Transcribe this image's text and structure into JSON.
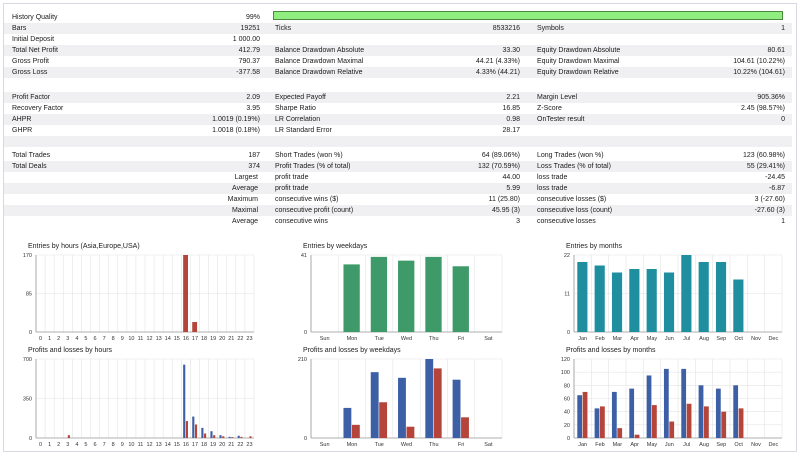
{
  "stats_rows": [
    {
      "cells": [
        [
          "History Quality",
          "99%"
        ],
        [
          "",
          ""
        ],
        [
          "",
          ""
        ]
      ],
      "alt": false
    },
    {
      "cells": [
        [
          "Bars",
          "19251"
        ],
        [
          "Ticks",
          "8533216"
        ],
        [
          "Symbols",
          "1"
        ]
      ],
      "alt": true
    },
    {
      "cells": [
        [
          "Initial Deposit",
          "1 000.00"
        ],
        [
          "",
          ""
        ],
        [
          "",
          ""
        ]
      ],
      "alt": false
    },
    {
      "cells": [
        [
          "Total Net Profit",
          "412.79"
        ],
        [
          "Balance Drawdown Absolute",
          "33.30"
        ],
        [
          "Equity Drawdown Absolute",
          "80.61"
        ]
      ],
      "alt": true
    },
    {
      "cells": [
        [
          "Gross Profit",
          "790.37"
        ],
        [
          "Balance Drawdown Maximal",
          "44.21 (4.33%)"
        ],
        [
          "Equity Drawdown Maximal",
          "104.61 (10.22%)"
        ]
      ],
      "alt": false
    },
    {
      "cells": [
        [
          "Gross Loss",
          "-377.58"
        ],
        [
          "Balance Drawdown Relative",
          "4.33% (44.21)"
        ],
        [
          "Equity Drawdown Relative",
          "10.22% (104.61)"
        ]
      ],
      "alt": true
    },
    {
      "cells": [
        [
          "",
          ""
        ],
        [
          "",
          ""
        ],
        [
          "",
          ""
        ]
      ],
      "alt": false
    },
    {
      "cells": [
        [
          "Profit Factor",
          "2.09"
        ],
        [
          "Expected Payoff",
          "2.21"
        ],
        [
          "Margin Level",
          "905.36%"
        ]
      ],
      "alt": true
    },
    {
      "cells": [
        [
          "Recovery Factor",
          "3.95"
        ],
        [
          "Sharpe Ratio",
          "16.85"
        ],
        [
          "Z-Score",
          "2.45 (98.57%)"
        ]
      ],
      "alt": false
    },
    {
      "cells": [
        [
          "AHPR",
          "1.0019 (0.19%)"
        ],
        [
          "LR Correlation",
          "0.98"
        ],
        [
          "OnTester result",
          "0"
        ]
      ],
      "alt": true
    },
    {
      "cells": [
        [
          "GHPR",
          "1.0018 (0.18%)"
        ],
        [
          "LR Standard Error",
          "28.17"
        ],
        [
          "",
          ""
        ]
      ],
      "alt": false
    },
    {
      "cells": [
        [
          "",
          ""
        ],
        [
          "",
          ""
        ],
        [
          "",
          ""
        ]
      ],
      "alt": true
    },
    {
      "cells": [
        [
          "Total Trades",
          "187"
        ],
        [
          "Short Trades (won %)",
          "64 (89.06%)"
        ],
        [
          "Long Trades (won %)",
          "123 (60.98%)"
        ]
      ],
      "alt": false
    },
    {
      "cells": [
        [
          "Total Deals",
          "374"
        ],
        [
          "Profit Trades (% of total)",
          "132 (70.59%)"
        ],
        [
          "Loss Trades (% of total)",
          "55 (29.41%)"
        ]
      ],
      "alt": true
    },
    {
      "cells": [
        [
          "Largest",
          ""
        ],
        [
          "profit trade",
          "44.00"
        ],
        [
          "loss trade",
          "-24.45"
        ]
      ],
      "alt": false,
      "right_label": true
    },
    {
      "cells": [
        [
          "Average",
          ""
        ],
        [
          "profit trade",
          "5.99"
        ],
        [
          "loss trade",
          "-6.87"
        ]
      ],
      "alt": true,
      "right_label": true
    },
    {
      "cells": [
        [
          "Maximum",
          ""
        ],
        [
          "consecutive wins ($)",
          "11 (25.80)"
        ],
        [
          "consecutive losses ($)",
          "3 (-27.60)"
        ]
      ],
      "alt": false,
      "right_label": true
    },
    {
      "cells": [
        [
          "Maximal",
          ""
        ],
        [
          "consecutive profit (count)",
          "45.95 (3)"
        ],
        [
          "consecutive loss (count)",
          "-27.60 (3)"
        ]
      ],
      "alt": true,
      "right_label": true
    },
    {
      "cells": [
        [
          "Average",
          ""
        ],
        [
          "consecutive wins",
          "3"
        ],
        [
          "consecutive losses",
          "1"
        ]
      ],
      "alt": false,
      "right_label": true
    }
  ],
  "colors": {
    "quality_fill": "#90ee80",
    "red": "#b5443a",
    "blue": "#3d5fa6",
    "green": "#3f9a6a",
    "teal": "#1f8fa0"
  },
  "chart_data": [
    {
      "id": "entries-hours",
      "type": "bar",
      "title": "Entries by hours (Asia,Europe,USA)",
      "categories": [
        "0",
        "1",
        "2",
        "3",
        "4",
        "5",
        "6",
        "7",
        "8",
        "9",
        "10",
        "11",
        "12",
        "13",
        "14",
        "15",
        "16",
        "17",
        "18",
        "19",
        "20",
        "21",
        "22",
        "23"
      ],
      "ylim": [
        0,
        170
      ],
      "yticks": [
        "170",
        "85",
        "0"
      ],
      "series": [
        {
          "values": [
            0,
            0,
            0,
            0,
            0,
            0,
            0,
            0,
            0,
            0,
            0,
            0,
            0,
            0,
            0,
            0,
            170,
            22,
            0,
            0,
            0,
            0,
            0,
            0
          ],
          "color": "#b5443a"
        }
      ]
    },
    {
      "id": "entries-weekdays",
      "type": "bar",
      "title": "Entries by weekdays",
      "categories": [
        "Sun",
        "Mon",
        "Tue",
        "Wed",
        "Thu",
        "Fri",
        "Sat"
      ],
      "ylim": [
        0,
        41
      ],
      "yticks": [
        "41",
        "0"
      ],
      "series": [
        {
          "values": [
            0,
            36,
            40,
            38,
            40,
            35,
            0
          ],
          "color": "#3f9a6a"
        }
      ]
    },
    {
      "id": "entries-months",
      "type": "bar",
      "title": "Entries by months",
      "categories": [
        "Jan",
        "Feb",
        "Mar",
        "Apr",
        "May",
        "Jun",
        "Jul",
        "Aug",
        "Sep",
        "Oct",
        "Nov",
        "Dec"
      ],
      "ylim": [
        0,
        22
      ],
      "yticks": [
        "22",
        "11",
        "0"
      ],
      "series": [
        {
          "values": [
            20,
            19,
            17,
            18,
            18,
            17,
            22,
            20,
            20,
            15,
            0,
            0
          ],
          "color": "#1f8fa0"
        }
      ]
    },
    {
      "id": "pl-hours",
      "type": "bar",
      "title": "Profits and losses by hours",
      "categories": [
        "0",
        "1",
        "2",
        "3",
        "4",
        "5",
        "6",
        "7",
        "8",
        "9",
        "10",
        "11",
        "12",
        "13",
        "14",
        "15",
        "16",
        "17",
        "18",
        "19",
        "20",
        "21",
        "22",
        "23"
      ],
      "ylim": [
        0,
        700
      ],
      "yticks": [
        "700",
        "350",
        "0"
      ],
      "series": [
        {
          "values": [
            0,
            0,
            0,
            0,
            0,
            0,
            0,
            0,
            0,
            0,
            0,
            0,
            0,
            0,
            0,
            0,
            650,
            190,
            90,
            60,
            25,
            10,
            20,
            0
          ],
          "color": "#3d5fa6"
        },
        {
          "values": [
            0,
            0,
            0,
            25,
            0,
            0,
            0,
            0,
            0,
            0,
            0,
            0,
            0,
            0,
            0,
            0,
            150,
            120,
            40,
            25,
            15,
            8,
            10,
            15
          ],
          "color": "#b5443a"
        }
      ]
    },
    {
      "id": "pl-weekdays",
      "type": "bar",
      "title": "Profits and losses by weekdays",
      "categories": [
        "Sun",
        "Mon",
        "Tue",
        "Wed",
        "Thu",
        "Fri",
        "Sat"
      ],
      "ylim": [
        0,
        210
      ],
      "yticks": [
        "210",
        "0"
      ],
      "series": [
        {
          "values": [
            0,
            80,
            175,
            160,
            215,
            155,
            0
          ],
          "color": "#3d5fa6"
        },
        {
          "values": [
            0,
            35,
            95,
            30,
            185,
            55,
            0
          ],
          "color": "#b5443a"
        }
      ]
    },
    {
      "id": "pl-months",
      "type": "bar",
      "title": "Profits and losses by months",
      "categories": [
        "Jan",
        "Feb",
        "Mar",
        "Apr",
        "May",
        "Jun",
        "Jul",
        "Aug",
        "Sep",
        "Oct",
        "Nov",
        "Dec"
      ],
      "ylim": [
        0,
        120
      ],
      "yticks": [
        "120",
        "100",
        "80",
        "60",
        "40",
        "20",
        "0"
      ],
      "series": [
        {
          "values": [
            65,
            45,
            70,
            75,
            95,
            105,
            105,
            80,
            75,
            80,
            0,
            0
          ],
          "color": "#3d5fa6"
        },
        {
          "values": [
            70,
            48,
            15,
            5,
            50,
            25,
            52,
            48,
            40,
            45,
            0,
            0
          ],
          "color": "#b5443a"
        }
      ]
    }
  ]
}
